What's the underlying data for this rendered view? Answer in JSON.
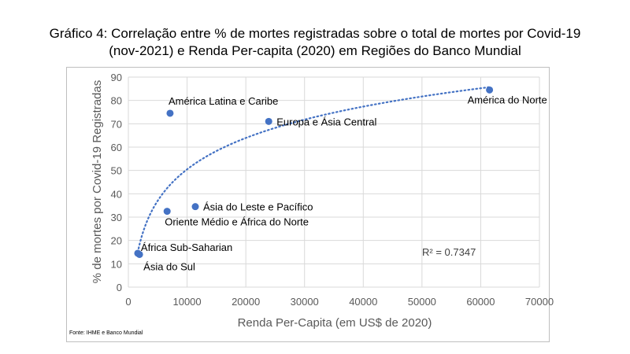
{
  "title_lines": [
    "Gráfico 4: Correlação entre % de mortes registradas sobre o total de mortes por Covid-19",
    "(nov-2021) e Renda Per-capita (2020) em Regiões do Banco Mundial"
  ],
  "source": "Fonte: IHME e Banco Mundial",
  "chart_data": {
    "type": "scatter",
    "xlabel": "Renda Per-Capita (em US$ de 2020)",
    "ylabel": "% de mortes por Covid-19 Registradas",
    "xlim": [
      0,
      70000
    ],
    "ylim": [
      0,
      90
    ],
    "xticks": [
      0,
      10000,
      20000,
      30000,
      40000,
      50000,
      60000,
      70000
    ],
    "yticks": [
      0,
      10,
      20,
      30,
      40,
      50,
      60,
      70,
      80,
      90
    ],
    "grid": true,
    "points": [
      {
        "label": "América do Norte",
        "x": 61500,
        "y": 84.5
      },
      {
        "label": "América Latina e Caribe",
        "x": 7100,
        "y": 74.5
      },
      {
        "label": "Europa e Ásia Central",
        "x": 23900,
        "y": 71
      },
      {
        "label": "Ásia do Leste e Pacífico",
        "x": 11400,
        "y": 34.5
      },
      {
        "label": "Oriente Médio e África do Norte",
        "x": 6600,
        "y": 32.5
      },
      {
        "label": "África Sub-Saharian",
        "x": 1600,
        "y": 14.5
      },
      {
        "label": "Ásia do Sul",
        "x": 1900,
        "y": 14
      }
    ],
    "trendline": {
      "type": "logarithmic",
      "style": "dotted",
      "r_squared_label": "R² = 0.7347"
    },
    "colors": {
      "marker": "#4472c4",
      "trendline": "#4472c4",
      "grid": "#d9d9d9"
    }
  }
}
